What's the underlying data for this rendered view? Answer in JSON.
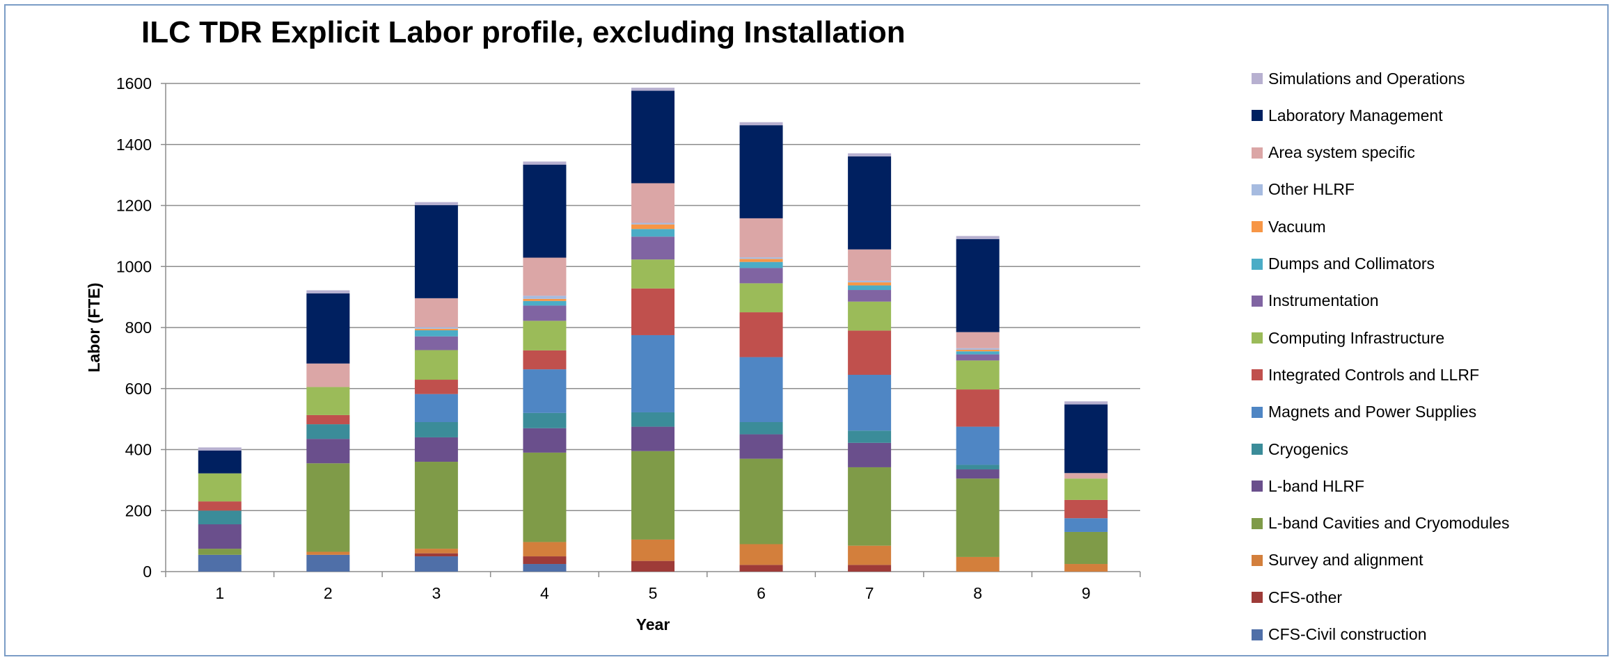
{
  "chart_data": {
    "type": "bar",
    "stacked": true,
    "title": "ILC TDR Explicit Labor profile, excluding Installation",
    "xlabel": "Year",
    "ylabel": "Labor (FTE)",
    "ylim": [
      0,
      1600
    ],
    "yticks": [
      "0",
      "200",
      "400",
      "600",
      "800",
      "1000",
      "1200",
      "1400",
      "1600"
    ],
    "grid": true,
    "legend_position": "right",
    "categories": [
      "1",
      "2",
      "3",
      "4",
      "5",
      "6",
      "7",
      "8",
      "9"
    ],
    "series": [
      {
        "name": "CFS-Civil construction",
        "color": "#4f6fa8",
        "values": [
          55,
          55,
          50,
          25,
          0,
          0,
          0,
          0,
          0
        ]
      },
      {
        "name": "CFS-other",
        "color": "#9e3b38",
        "values": [
          0,
          0,
          10,
          25,
          35,
          22,
          22,
          0,
          0
        ]
      },
      {
        "name": "Survey and alignment",
        "color": "#d37f3c",
        "values": [
          0,
          10,
          15,
          47,
          70,
          68,
          63,
          48,
          25
        ]
      },
      {
        "name": "L-band Cavities and Cryomodules",
        "color": "#7f9b48",
        "values": [
          20,
          290,
          285,
          293,
          290,
          280,
          257,
          257,
          105
        ]
      },
      {
        "name": "L-band HLRF",
        "color": "#6a4f8c",
        "values": [
          80,
          80,
          80,
          80,
          80,
          80,
          80,
          30,
          0
        ]
      },
      {
        "name": "Cryogenics",
        "color": "#3b8c99",
        "values": [
          45,
          48,
          50,
          50,
          47,
          40,
          40,
          15,
          0
        ]
      },
      {
        "name": "Magnets and Power Supplies",
        "color": "#4f86c4",
        "values": [
          0,
          0,
          92,
          143,
          253,
          213,
          183,
          125,
          45
        ]
      },
      {
        "name": "Integrated Controls and LLRF",
        "color": "#c0504d",
        "values": [
          30,
          30,
          47,
          62,
          153,
          147,
          145,
          122,
          60
        ]
      },
      {
        "name": "Computing Infrastructure",
        "color": "#9bbb59",
        "values": [
          92,
          92,
          97,
          97,
          95,
          95,
          95,
          95,
          70
        ]
      },
      {
        "name": "Instrumentation",
        "color": "#8064a2",
        "values": [
          0,
          0,
          45,
          50,
          75,
          50,
          38,
          20,
          0
        ]
      },
      {
        "name": "Dumps and Collimators",
        "color": "#4bacc6",
        "values": [
          0,
          0,
          20,
          15,
          25,
          20,
          15,
          10,
          0
        ]
      },
      {
        "name": "Vacuum",
        "color": "#f79646",
        "values": [
          0,
          0,
          5,
          7,
          15,
          10,
          10,
          5,
          0
        ]
      },
      {
        "name": "Other HLRF",
        "color": "#a6bbe0",
        "values": [
          0,
          0,
          5,
          10,
          5,
          5,
          5,
          5,
          0
        ]
      },
      {
        "name": "Area system specific",
        "color": "#dba6a6",
        "values": [
          0,
          77,
          95,
          125,
          130,
          128,
          103,
          53,
          18
        ]
      },
      {
        "name": "Laboratory Management",
        "color": "#002060",
        "values": [
          75,
          230,
          305,
          305,
          303,
          305,
          305,
          305,
          225
        ]
      },
      {
        "name": "Simulations and Operations",
        "color": "#b7b0d0",
        "values": [
          10,
          10,
          10,
          10,
          10,
          10,
          10,
          10,
          10
        ]
      }
    ]
  }
}
